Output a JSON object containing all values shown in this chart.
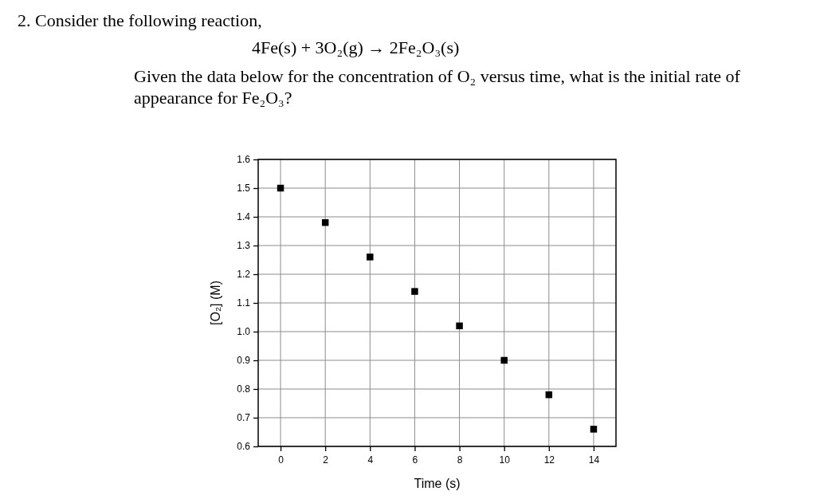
{
  "chart_data": {
    "type": "scatter",
    "title": "2. Consider the following reaction,",
    "subtitle": "4Fe(s) + 3O₂(g) → 2Fe₂O₃(s)",
    "annotations": [
      "Given the data below for the concentration of O₂ versus time, what is the initial rate of appearance for Fe₂O₃?"
    ],
    "xlabel": "Time (s)",
    "ylabel": "[O₂] (M)",
    "x": [
      0,
      2,
      4,
      6,
      8,
      10,
      12,
      14
    ],
    "series": [
      {
        "color": "#000000",
        "values": [
          1.5,
          1.38,
          1.26,
          1.14,
          1.02,
          0.9,
          0.78,
          0.66
        ]
      }
    ],
    "xlim": [
      -1,
      15
    ],
    "xticks": [
      0,
      2,
      4,
      6,
      8,
      10,
      12,
      14
    ],
    "ylim": [
      0.6,
      1.6
    ],
    "yticks": [
      {
        "value": 0.6,
        "label": "0.6"
      },
      {
        "value": 0.7,
        "label": "0.7"
      },
      {
        "value": 0.8,
        "label": "0.8"
      },
      {
        "value": 0.9,
        "label": "0.9"
      },
      {
        "value": 1.0,
        "label": "1.0"
      },
      {
        "value": 1.1,
        "label": "1.1"
      },
      {
        "value": 1.2,
        "label": "1.2"
      },
      {
        "value": 1.3,
        "label": "1.3"
      },
      {
        "value": 1.4,
        "label": "1.4"
      },
      {
        "value": 1.5,
        "label": "1.5"
      },
      {
        "value": 1.6,
        "label": "1.6"
      }
    ],
    "grid": true,
    "marker": "square"
  }
}
